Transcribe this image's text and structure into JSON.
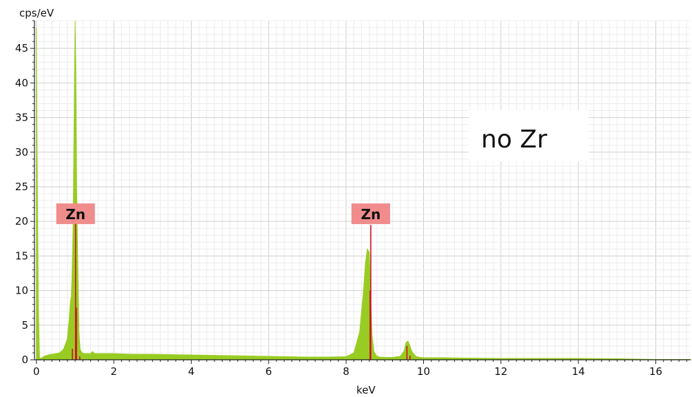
{
  "chart_data": {
    "type": "area",
    "title": "",
    "xlabel": "keV",
    "ylabel": "cps/eV",
    "xlim": [
      -0.05,
      16.9
    ],
    "ylim": [
      0,
      49
    ],
    "x_ticks": [
      0,
      2,
      4,
      6,
      8,
      10,
      12,
      14,
      16
    ],
    "y_ticks": [
      0,
      5,
      10,
      15,
      20,
      25,
      30,
      35,
      40,
      45
    ],
    "grid": true,
    "legend": "none",
    "spectrum_color": "#99cc22",
    "marker_color": "#cc1122",
    "label_bg_color": "#f08c8c",
    "series": [
      {
        "x": [
          0.0,
          0.02,
          0.05,
          0.08,
          0.12,
          0.2,
          0.3,
          0.4,
          0.5,
          0.6,
          0.7,
          0.8,
          0.85,
          0.88,
          0.9,
          0.92,
          0.95,
          0.97,
          1.0,
          1.02,
          1.04,
          1.07,
          1.1,
          1.13,
          1.18,
          1.25,
          1.3,
          1.4,
          1.45,
          1.5,
          1.6,
          1.8,
          2.0,
          2.2,
          2.5,
          3.0,
          3.5,
          4.0,
          4.5,
          5.0,
          5.5,
          6.0,
          6.5,
          7.0,
          7.5,
          8.0,
          8.2,
          8.35,
          8.45,
          8.5,
          8.55,
          8.6,
          8.63,
          8.67,
          8.72,
          8.78,
          8.85,
          9.0,
          9.2,
          9.4,
          9.5,
          9.55,
          9.6,
          9.65,
          9.7,
          9.8,
          9.9,
          10.0,
          10.5,
          11.0,
          12.0,
          13.0,
          14.0,
          15.0,
          15.5,
          16.0,
          16.5,
          16.9
        ],
        "y": [
          48,
          30,
          8,
          0.3,
          0.2,
          0.5,
          0.7,
          0.8,
          0.9,
          1.0,
          1.5,
          3.0,
          6.0,
          8.5,
          9.0,
          12,
          20,
          32,
          49,
          42,
          25,
          14,
          4,
          1.5,
          1.0,
          0.9,
          0.9,
          0.9,
          1.2,
          0.9,
          0.9,
          0.9,
          0.9,
          0.85,
          0.8,
          0.8,
          0.75,
          0.7,
          0.65,
          0.6,
          0.55,
          0.5,
          0.45,
          0.4,
          0.4,
          0.45,
          1.0,
          4.0,
          10,
          14,
          16,
          15.5,
          10,
          3.5,
          1.2,
          0.6,
          0.4,
          0.35,
          0.35,
          0.5,
          1.3,
          2.5,
          2.7,
          2.0,
          1.2,
          0.5,
          0.35,
          0.3,
          0.3,
          0.25,
          0.2,
          0.2,
          0.2,
          0.15,
          0.1,
          0.05,
          0.05,
          0.05
        ]
      }
    ],
    "markers": [
      {
        "x": 1.012,
        "height": 21
      },
      {
        "x": 0.93,
        "height": 1.6
      },
      {
        "x": 1.035,
        "height": 7.5
      },
      {
        "x": 1.12,
        "height": 0.5
      },
      {
        "x": 8.638,
        "height": 19.5
      },
      {
        "x": 8.62,
        "height": 10
      },
      {
        "x": 9.572,
        "height": 2.0
      },
      {
        "x": 9.65,
        "height": 0.6
      }
    ],
    "element_labels": [
      {
        "text": "Zn",
        "x": 1.012,
        "y": 21
      },
      {
        "text": "Zn",
        "x": 8.638,
        "y": 21
      }
    ],
    "annotation": "no Zr"
  }
}
